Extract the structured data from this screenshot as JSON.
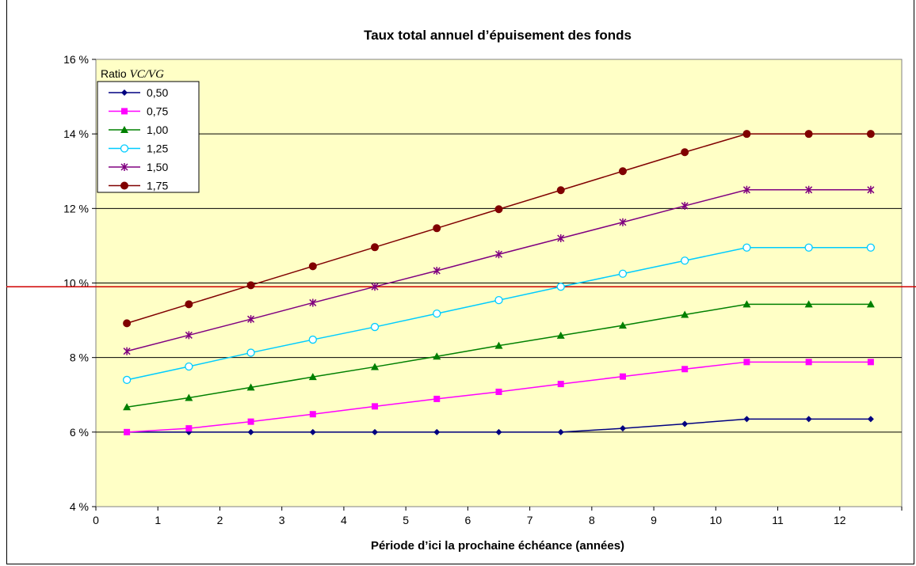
{
  "chart_data": {
    "type": "line",
    "title": "Taux total annuel d’épuisement des fonds",
    "xlabel": "Période d’ici la prochaine échéance (années)",
    "ylabel": "",
    "xlim": [
      0,
      13
    ],
    "ylim": [
      4,
      16
    ],
    "x_ticks": [
      "0",
      "1",
      "2",
      "3",
      "4",
      "5",
      "6",
      "7",
      "8",
      "9",
      "10",
      "11",
      "12"
    ],
    "y_ticks": [
      "4 %",
      "6 %",
      "8 %",
      "10 %",
      "12 %",
      "14 %",
      "16 %"
    ],
    "reference_line": {
      "y": 9.9,
      "color": "#d00000"
    },
    "legend": {
      "title_prefix": "Ratio ",
      "title_italic": "VC/VG",
      "position": "top-left"
    },
    "background": "#ffffc6",
    "gridlines": "horizontal",
    "x": [
      0.5,
      1.5,
      2.5,
      3.5,
      4.5,
      5.5,
      6.5,
      7.5,
      8.5,
      9.5,
      10.5,
      11.5,
      12.5
    ],
    "series": [
      {
        "name": "0,50",
        "color": "#000080",
        "marker": "diamond",
        "values": [
          6.0,
          6.0,
          6.0,
          6.0,
          6.0,
          6.0,
          6.0,
          6.0,
          6.1,
          6.22,
          6.35,
          6.35,
          6.35
        ]
      },
      {
        "name": "0,75",
        "color": "#ff00ff",
        "marker": "square",
        "values": [
          6.0,
          6.1,
          6.28,
          6.48,
          6.69,
          6.89,
          7.08,
          7.29,
          7.49,
          7.69,
          7.88,
          7.88,
          7.88
        ]
      },
      {
        "name": "1,00",
        "color": "#008000",
        "marker": "triangle",
        "values": [
          6.67,
          6.92,
          7.2,
          7.48,
          7.75,
          8.03,
          8.32,
          8.59,
          8.86,
          9.15,
          9.43,
          9.43,
          9.43
        ]
      },
      {
        "name": "1,25",
        "color": "#00ccff",
        "marker": "circle-open",
        "values": [
          7.4,
          7.76,
          8.13,
          8.48,
          8.82,
          9.18,
          9.54,
          9.9,
          10.25,
          10.6,
          10.95,
          10.95,
          10.95
        ]
      },
      {
        "name": "1,50",
        "color": "#800080",
        "marker": "star",
        "values": [
          8.17,
          8.6,
          9.03,
          9.47,
          9.9,
          10.33,
          10.77,
          11.2,
          11.63,
          12.07,
          12.5,
          12.5,
          12.5
        ]
      },
      {
        "name": "1,75",
        "color": "#800000",
        "marker": "circle",
        "values": [
          8.92,
          9.43,
          9.94,
          10.45,
          10.96,
          11.47,
          11.98,
          12.49,
          13.0,
          13.51,
          14.0,
          14.0,
          14.0
        ]
      }
    ]
  }
}
